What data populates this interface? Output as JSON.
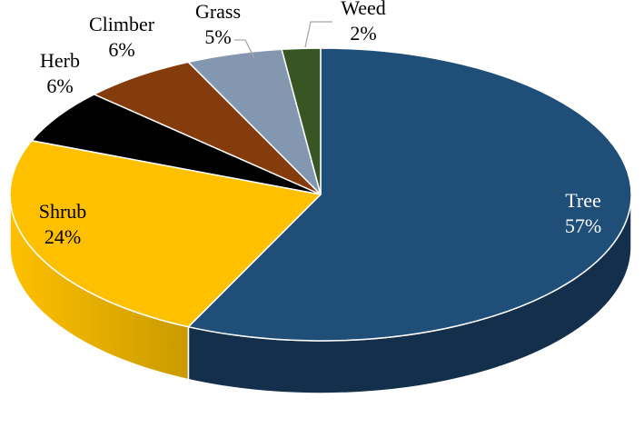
{
  "chart_data": {
    "type": "pie",
    "style": "3d",
    "start_angle_deg": 0,
    "direction": "clockwise",
    "slices": [
      {
        "key": "tree",
        "label": "Tree",
        "value": 57,
        "display": "57%",
        "color": "#1f4e79",
        "side_color": "#142f4b",
        "label_color": "#ffffff"
      },
      {
        "key": "shrub",
        "label": "Shrub",
        "value": 24,
        "display": "24%",
        "color": "#ffc000",
        "side_color": "#c99a00",
        "label_color": "#000000"
      },
      {
        "key": "herb",
        "label": "Herb",
        "value": 6,
        "display": "6%",
        "color": "#000000",
        "side_color": "#000000",
        "label_color": "#000000"
      },
      {
        "key": "climber",
        "label": "Climber",
        "value": 6,
        "display": "6%",
        "color": "#843c0c",
        "side_color": "#5e2b08",
        "label_color": "#000000"
      },
      {
        "key": "grass",
        "label": "Grass",
        "value": 5,
        "display": "5%",
        "color": "#8497b0",
        "side_color": "#66778c",
        "label_color": "#000000"
      },
      {
        "key": "weed",
        "label": "Weed",
        "value": 2,
        "display": "2%",
        "color": "#375623",
        "side_color": "#27401a",
        "label_color": "#000000"
      }
    ]
  }
}
